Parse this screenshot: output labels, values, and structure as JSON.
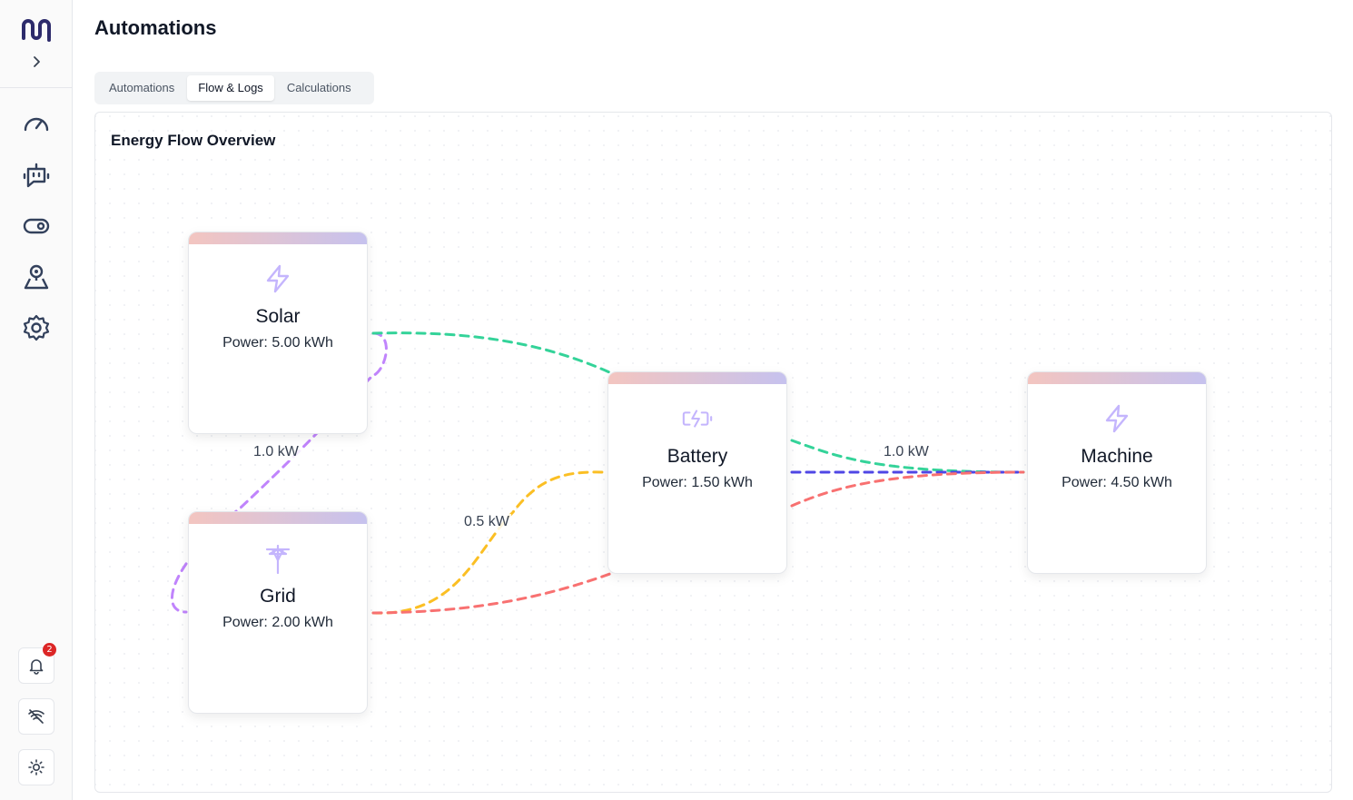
{
  "app": {
    "title": "Automations",
    "logo_icon": "brand-logo-icon"
  },
  "sidebar": {
    "nav": [
      {
        "icon": "gauge-icon",
        "name": "nav-dashboard"
      },
      {
        "icon": "robot-icon",
        "name": "nav-automations"
      },
      {
        "icon": "toggle-icon",
        "name": "nav-devices"
      },
      {
        "icon": "map-pin-user-icon",
        "name": "nav-locations"
      },
      {
        "icon": "gear-icon",
        "name": "nav-settings"
      }
    ],
    "notifications_count": "2"
  },
  "tabs": [
    {
      "label": "Automations",
      "active": false
    },
    {
      "label": "Flow & Logs",
      "active": true
    },
    {
      "label": "Calculations",
      "active": false
    }
  ],
  "flow": {
    "title": "Energy Flow Overview",
    "nodes": {
      "solar": {
        "name": "Solar",
        "power": "Power: 5.00 kWh",
        "icon": "lightning-icon"
      },
      "grid": {
        "name": "Grid",
        "power": "Power: 2.00 kWh",
        "icon": "power-tower-icon"
      },
      "battery": {
        "name": "Battery",
        "power": "Power: 1.50 kWh",
        "icon": "battery-charging-icon"
      },
      "machine": {
        "name": "Machine",
        "power": "Power: 4.50 kWh",
        "icon": "lightning-icon"
      }
    },
    "edge_labels": {
      "solar_grid": "1.0 kW",
      "grid_battery": "0.5 kW",
      "battery_machine": "1.0 kW"
    },
    "colors": {
      "purple": "#c084fc",
      "green": "#34d399",
      "yellow": "#fbbf24",
      "red": "#f87171",
      "blue": "#4f46e5",
      "icon": "#c4b5fd"
    }
  }
}
